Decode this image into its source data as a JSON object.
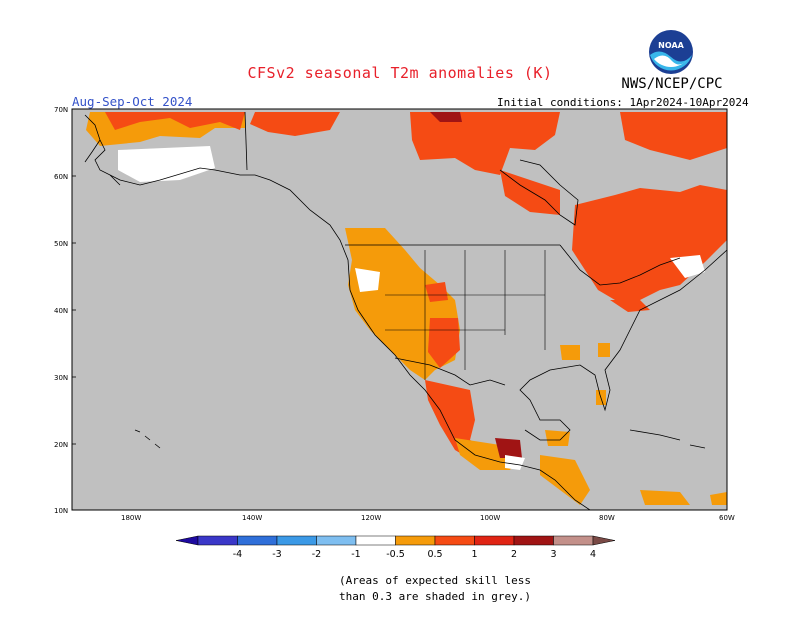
{
  "title": "CFSv2 seasonal T2m anomalies (K)",
  "agency": "NWS/NCEP/CPC",
  "logo_text": "NOAA",
  "period": "Aug-Sep-Oct 2024",
  "initial_conditions": "Initial conditions: 1Apr2024-10Apr2024",
  "map": {
    "lat_ticks": [
      "70N",
      "60N",
      "50N",
      "40N",
      "30N",
      "20N",
      "10N"
    ],
    "lon_ticks": [
      "180W",
      "140W",
      "120W",
      "100W",
      "80W",
      "60W"
    ],
    "grey_meaning": "skill < 0.3"
  },
  "colorbar": {
    "labels": [
      "-4",
      "-3",
      "-2",
      "-1",
      "-0.5",
      "0.5",
      "1",
      "2",
      "3",
      "4"
    ],
    "colors": [
      "#1e0aa0",
      "#3a37c8",
      "#2f6fd9",
      "#3b99e6",
      "#7ebef0",
      "#ffffff",
      "#f59b0a",
      "#f54b14",
      "#e02414",
      "#a01414",
      "#c3908a",
      "#7a4a46"
    ]
  },
  "note": {
    "line1": "(Areas of expected skill less",
    "line2": "than 0.3 are shaded in grey.)"
  },
  "chart_data": {
    "type": "heatmap",
    "title": "CFSv2 seasonal T2m anomalies (K)",
    "subtitle": "Aug-Sep-Oct 2024",
    "region": "North America",
    "lat_range": [
      10,
      70
    ],
    "lon_range": [
      -190,
      -60
    ],
    "levels": [
      -4,
      -3,
      -2,
      -1,
      -0.5,
      0.5,
      1,
      2,
      3,
      4
    ],
    "anomaly_regions": [
      {
        "region": "Alaska",
        "anomaly_K": "0.5-1 and 1-2"
      },
      {
        "region": "Western United States",
        "anomaly_K": "0.5-1"
      },
      {
        "region": "Northern Mexico",
        "anomaly_K": "1-2"
      },
      {
        "region": "Eastern Canada / Northeast US",
        "anomaly_K": "1-2"
      },
      {
        "region": "Northern Canada / Arctic coast",
        "anomaly_K": "1-2"
      },
      {
        "region": "Central America",
        "anomaly_K": "0.5-1"
      }
    ]
  }
}
